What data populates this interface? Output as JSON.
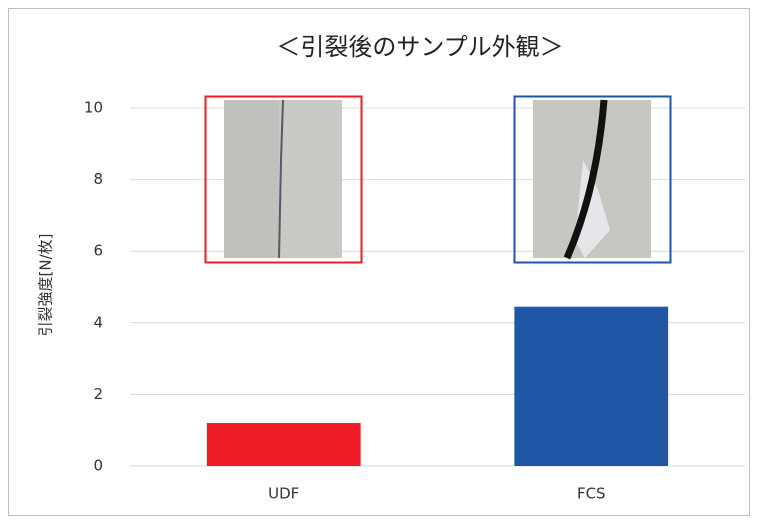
{
  "chart_data": {
    "type": "bar",
    "title": "＜引裂後のサンプル外観＞",
    "y_label": "引裂強度[N/枚]",
    "categories": [
      "UDF",
      "FCS"
    ],
    "values": [
      1.2,
      4.45
    ],
    "colors": [
      "#ed1c24",
      "#1f56a6"
    ],
    "ylim": [
      0,
      10
    ],
    "yticks": [
      0,
      2,
      4,
      6,
      8,
      10
    ],
    "grid": true
  }
}
